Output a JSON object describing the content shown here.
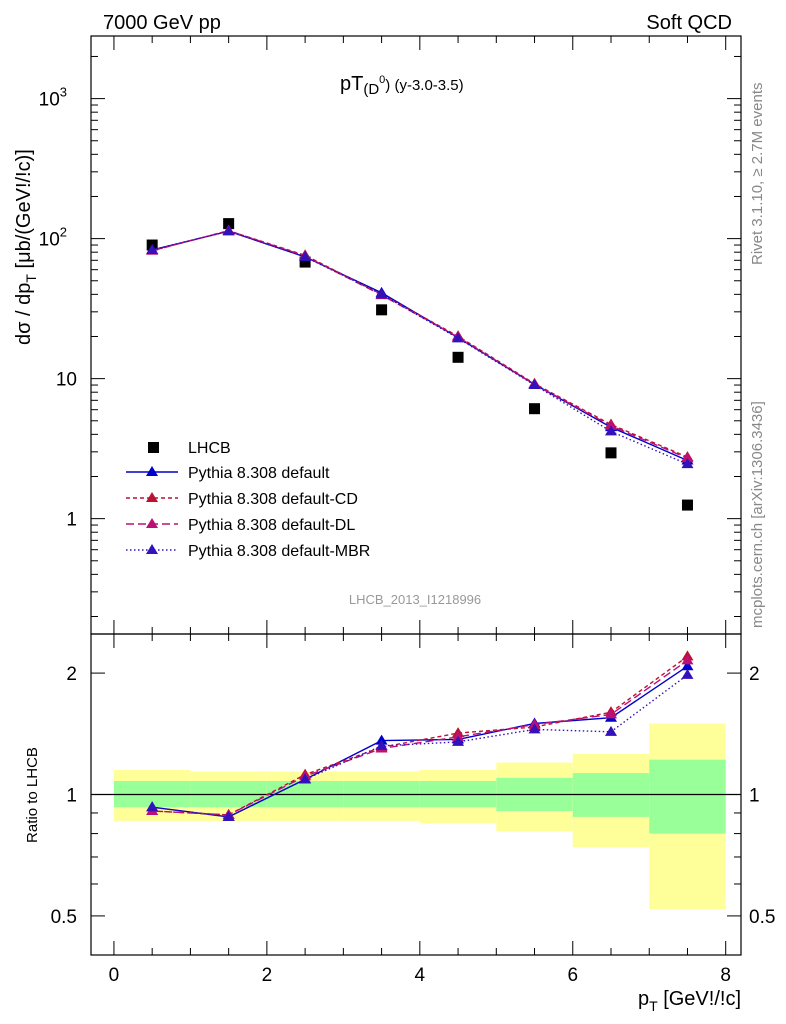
{
  "header": {
    "left": "7000 GeV pp",
    "right": "Soft QCD"
  },
  "side": {
    "rivet": "Rivet 3.1.10, ≥ 2.7M events",
    "mcplots": "mcplots.cern.ch [arXiv:1306.3436]"
  },
  "main": {
    "title_main": "pT",
    "title_sub": "(D",
    "title_sup": "0",
    "title_close": ")",
    "title_rest": " (y-3.0-3.5)",
    "ylabel_pre": "dσ / dp",
    "ylabel_sub": "T",
    "ylabel_post": " [μb/(GeV!/!c)]",
    "analysis_id": "LHCB_2013_I1218996"
  },
  "ratio": {
    "ylabel": "Ratio to LHCB"
  },
  "xaxis": {
    "label_pre": "p",
    "label_sub": "T",
    "label_post": " [GeV!/!c]"
  },
  "chart_data": [
    {
      "type": "scatter",
      "ylog": true,
      "ylim": [
        0.15,
        2800
      ],
      "xlim": [
        -0.3,
        8.2
      ],
      "yticks": [
        {
          "value": 1,
          "label": "1"
        },
        {
          "value": 10,
          "label": "10"
        },
        {
          "value": 100,
          "label": "10",
          "sup": "2"
        },
        {
          "value": 1000,
          "label": "10",
          "sup": "3"
        }
      ],
      "x": [
        0.5,
        1.5,
        2.5,
        3.5,
        4.5,
        5.5,
        6.5,
        7.5
      ],
      "series": [
        {
          "name": "LHCB",
          "marker": "square",
          "color": "#000000",
          "values": [
            90,
            128,
            68,
            31,
            14.2,
            6.1,
            2.95,
            1.25
          ]
        },
        {
          "name": "Pythia 8.308 default",
          "marker": "triangle",
          "dash": "",
          "color": "#0000cc",
          "values": [
            83,
            113,
            74,
            41,
            19.6,
            9.1,
            4.5,
            2.6
          ]
        },
        {
          "name": "Pythia 8.308 default-CD",
          "marker": "triangle",
          "dash": "4,3",
          "color": "#bb1133",
          "values": [
            82,
            114,
            76,
            40,
            20.1,
            9.2,
            4.7,
            2.75
          ]
        },
        {
          "name": "Pythia 8.308 default-DL",
          "marker": "triangle",
          "dash": "8,4",
          "color": "#bb1177",
          "values": [
            82,
            114,
            75,
            39.5,
            19.8,
            9.1,
            4.6,
            2.7
          ]
        },
        {
          "name": "Pythia 8.308 default-MBR",
          "marker": "triangle",
          "dash": "1.5,2.5",
          "color": "#3311bb",
          "values": [
            83,
            113,
            74,
            40,
            19.4,
            9.0,
            4.2,
            2.45
          ]
        }
      ]
    },
    {
      "type": "line",
      "ylog": true,
      "ylim": [
        0.4,
        2.5
      ],
      "xlim": [
        -0.3,
        8.2
      ],
      "yticks": [
        {
          "value": 0.5,
          "label": "0.5"
        },
        {
          "value": 1,
          "label": "1"
        },
        {
          "value": 2,
          "label": "2"
        }
      ],
      "xticks": [
        0,
        2,
        4,
        6,
        8
      ],
      "reference": 1,
      "bands": [
        {
          "x0": 0,
          "x1": 1,
          "inner": [
            0.93,
            1.08
          ],
          "outer": [
            0.86,
            1.15
          ]
        },
        {
          "x0": 1,
          "x1": 2,
          "inner": [
            0.93,
            1.08
          ],
          "outer": [
            0.86,
            1.14
          ]
        },
        {
          "x0": 2,
          "x1": 3,
          "inner": [
            0.93,
            1.08
          ],
          "outer": [
            0.86,
            1.14
          ]
        },
        {
          "x0": 3,
          "x1": 4,
          "inner": [
            0.93,
            1.08
          ],
          "outer": [
            0.86,
            1.14
          ]
        },
        {
          "x0": 4,
          "x1": 5,
          "inner": [
            0.93,
            1.08
          ],
          "outer": [
            0.85,
            1.15
          ]
        },
        {
          "x0": 5,
          "x1": 6,
          "inner": [
            0.91,
            1.1
          ],
          "outer": [
            0.81,
            1.2
          ]
        },
        {
          "x0": 6,
          "x1": 7,
          "inner": [
            0.88,
            1.13
          ],
          "outer": [
            0.74,
            1.26
          ]
        },
        {
          "x0": 7,
          "x1": 8,
          "inner": [
            0.8,
            1.22
          ],
          "outer": [
            0.52,
            1.5
          ]
        }
      ],
      "x": [
        0.5,
        1.5,
        2.5,
        3.5,
        4.5,
        5.5,
        6.5,
        7.5
      ],
      "series": [
        {
          "name": "Pythia 8.308 default",
          "dash": "",
          "color": "#0000cc",
          "values": [
            0.93,
            0.88,
            1.09,
            1.36,
            1.37,
            1.5,
            1.55,
            2.08
          ]
        },
        {
          "name": "Pythia 8.308 default-CD",
          "dash": "4,3",
          "color": "#bb1133",
          "values": [
            0.91,
            0.89,
            1.12,
            1.31,
            1.42,
            1.47,
            1.6,
            2.2
          ]
        },
        {
          "name": "Pythia 8.308 default-DL",
          "dash": "8,4",
          "color": "#bb1177",
          "values": [
            0.91,
            0.89,
            1.11,
            1.3,
            1.39,
            1.49,
            1.58,
            2.15
          ]
        },
        {
          "name": "Pythia 8.308 default-MBR",
          "dash": "1.5,2.5",
          "color": "#3311bb",
          "values": [
            0.93,
            0.88,
            1.09,
            1.32,
            1.35,
            1.45,
            1.43,
            1.98
          ]
        }
      ]
    }
  ]
}
